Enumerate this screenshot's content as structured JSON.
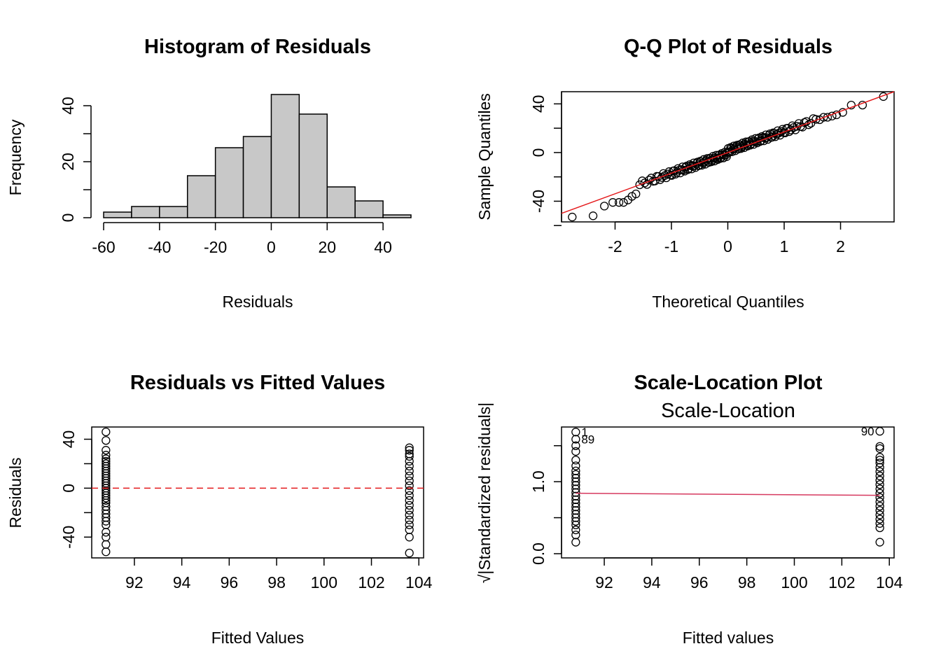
{
  "colors": {
    "bar_fill": "#c8c8c8",
    "ink": "#000000",
    "red": "#e41a1c",
    "smooth": "#d6395f"
  },
  "chart_data": [
    {
      "type": "bar",
      "title": "Histogram of Residuals",
      "xlabel": "Residuals",
      "ylabel": "Frequency",
      "bin_edges": [
        -60,
        -50,
        -40,
        -30,
        -20,
        -10,
        0,
        10,
        20,
        30,
        40,
        50
      ],
      "values": [
        2,
        4,
        4,
        15,
        25,
        29,
        44,
        37,
        11,
        6,
        1
      ],
      "xlim": [
        -60,
        50
      ],
      "ylim": [
        0,
        45
      ],
      "xticks": [
        -60,
        -40,
        -20,
        0,
        20,
        40
      ],
      "xtick_labels": [
        "-60",
        "-40",
        "-20",
        "0",
        "20",
        "40"
      ],
      "yticks": [
        0,
        10,
        20,
        30,
        40
      ],
      "ytick_labels": [
        "0",
        "20",
        "40"
      ]
    },
    {
      "type": "scatter",
      "title": "Q-Q Plot of Residuals",
      "xlabel": "Theoretical Quantiles",
      "ylabel": "Sample Quantiles",
      "xlim": [
        -2.95,
        2.95
      ],
      "ylim": [
        -57,
        50
      ],
      "xticks": [
        -2,
        -1,
        0,
        1,
        2
      ],
      "xtick_labels": [
        "-2",
        "-1",
        "0",
        "1",
        "2"
      ],
      "yticks": [
        -60,
        -40,
        -20,
        0,
        20,
        40
      ],
      "ytick_labels": [
        "-40",
        "0",
        "40"
      ],
      "line": {
        "x": [
          -2.95,
          2.95
        ],
        "y": [
          -50,
          50
        ]
      },
      "n": 178,
      "tail_points": [
        [
          -2.76,
          -53
        ],
        [
          -2.39,
          -52
        ],
        [
          -2.19,
          -44
        ],
        [
          -2.04,
          -41
        ],
        [
          -1.93,
          -41
        ],
        [
          -1.85,
          -41
        ],
        [
          -1.77,
          -39
        ],
        [
          -1.7,
          -36
        ],
        [
          -1.63,
          -34
        ],
        [
          1.63,
          27
        ],
        [
          1.7,
          29
        ],
        [
          1.77,
          29
        ],
        [
          1.85,
          30
        ],
        [
          1.93,
          31
        ],
        [
          2.04,
          33
        ],
        [
          2.19,
          39
        ],
        [
          2.39,
          39
        ],
        [
          2.76,
          46
        ]
      ]
    },
    {
      "type": "scatter",
      "title": "Residuals vs Fitted Values",
      "xlabel": "Fitted Values",
      "ylabel": "Residuals",
      "xlim": [
        90.2,
        104.2
      ],
      "ylim": [
        -57,
        50
      ],
      "xticks": [
        92,
        94,
        96,
        98,
        100,
        102,
        104
      ],
      "xtick_labels": [
        "92",
        "94",
        "96",
        "98",
        "100",
        "102",
        "104"
      ],
      "yticks": [
        -40,
        -20,
        0,
        20,
        40
      ],
      "ytick_labels": [
        "-40",
        "0",
        "40"
      ],
      "hline": 0,
      "groups": [
        {
          "x": 90.8,
          "y": [
            46,
            39,
            31,
            27,
            24,
            22,
            20,
            18,
            16,
            14,
            12,
            10,
            8,
            6,
            4,
            2,
            0,
            -2,
            -4,
            -6,
            -8,
            -10,
            -12,
            -15,
            -18,
            -21,
            -24,
            -27,
            -30,
            -36,
            -40,
            -46,
            -52
          ]
        },
        {
          "x": 103.6,
          "y": [
            33,
            31,
            28,
            26,
            22,
            18,
            14,
            10,
            6,
            2,
            -2,
            -6,
            -10,
            -14,
            -18,
            -22,
            -26,
            -30,
            -34,
            -40,
            -53
          ]
        }
      ]
    },
    {
      "type": "scatter",
      "title": "Scale-Location Plot",
      "subtitle": "Scale-Location",
      "xlabel": "Fitted values",
      "ylabel": "√|Standardized residuals|",
      "xlim": [
        90.2,
        104.2
      ],
      "ylim": [
        0,
        1.75
      ],
      "xticks": [
        92,
        94,
        96,
        98,
        100,
        102,
        104
      ],
      "xtick_labels": [
        "92",
        "94",
        "96",
        "98",
        "100",
        "102",
        "104"
      ],
      "yticks": [
        0,
        0.5,
        1.0,
        1.5
      ],
      "ytick_labels": [
        "0.0",
        "1.0"
      ],
      "smooth": {
        "x": [
          90.8,
          103.6
        ],
        "y": [
          0.84,
          0.81
        ]
      },
      "point_labels": [
        {
          "text": "1",
          "x": 90.8,
          "y": 1.69
        },
        {
          "text": "89",
          "x": 90.8,
          "y": 1.59
        },
        {
          "text": "90",
          "x": 103.6,
          "y": 1.7
        }
      ],
      "groups": [
        {
          "x": 90.8,
          "y": [
            1.69,
            1.59,
            1.5,
            1.42,
            1.3,
            1.22,
            1.15,
            1.1,
            1.05,
            1.0,
            0.95,
            0.9,
            0.85,
            0.8,
            0.75,
            0.7,
            0.65,
            0.6,
            0.55,
            0.5,
            0.45,
            0.4,
            0.33,
            0.26,
            0.16
          ]
        },
        {
          "x": 103.6,
          "y": [
            1.7,
            1.49,
            1.46,
            1.34,
            1.3,
            1.26,
            1.2,
            1.14,
            1.08,
            1.02,
            0.96,
            0.9,
            0.84,
            0.78,
            0.72,
            0.66,
            0.6,
            0.54,
            0.48,
            0.42,
            0.36,
            0.16
          ]
        }
      ]
    }
  ]
}
